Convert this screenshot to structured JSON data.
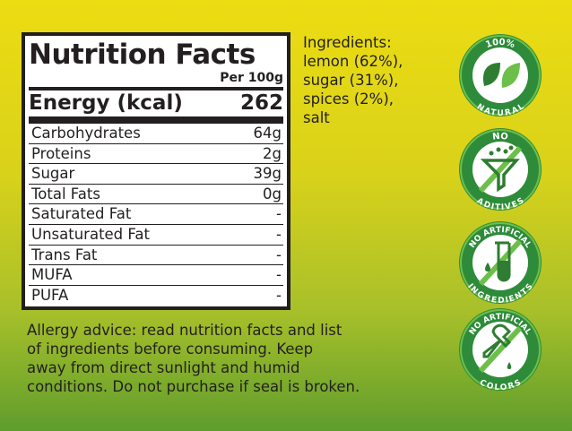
{
  "nutrition": {
    "title": "Nutrition Facts",
    "per": "Per 100g",
    "energy_label": "Energy (kcal)",
    "energy_value": "262",
    "rows": [
      {
        "label": "Carbohydrates",
        "value": "64g"
      },
      {
        "label": "Proteins",
        "value": "2g"
      },
      {
        "label": "Sugar",
        "value": "39g"
      },
      {
        "label": "Total Fats",
        "value": "0g"
      },
      {
        "label": "Saturated Fat",
        "value": "-"
      },
      {
        "label": "Unsaturated Fat",
        "value": "-"
      },
      {
        "label": "Trans Fat",
        "value": "-"
      },
      {
        "label": "MUFA",
        "value": "-"
      },
      {
        "label": "PUFA",
        "value": "-"
      }
    ]
  },
  "ingredients": {
    "lines": [
      "Ingredients:",
      "lemon (62%),",
      "sugar (31%),",
      "spices (2%),",
      "salt"
    ]
  },
  "allergy": {
    "lines": [
      "Allergy advice: read nutrition facts and list",
      "of ingredients before consuming. Keep",
      "away from direct sunlight and humid",
      "conditions. Do not purchase if seal is broken."
    ]
  },
  "badges": [
    {
      "icon": "leaves-icon",
      "top": "100%",
      "bottom": "NATURAL"
    },
    {
      "icon": "funnel-icon",
      "top": "NO",
      "bottom": "ADITIVES"
    },
    {
      "icon": "test-tube-icon",
      "top": "NO ARTIFICIAL",
      "bottom": "INGREDIENTS"
    },
    {
      "icon": "dropper-icon",
      "top": "NO ARTIFICIAL",
      "bottom": "COLORS"
    }
  ],
  "colors": {
    "badge_dark": "#2e8b3a",
    "badge_light": "#6cbf4a",
    "text": "#231f20"
  }
}
